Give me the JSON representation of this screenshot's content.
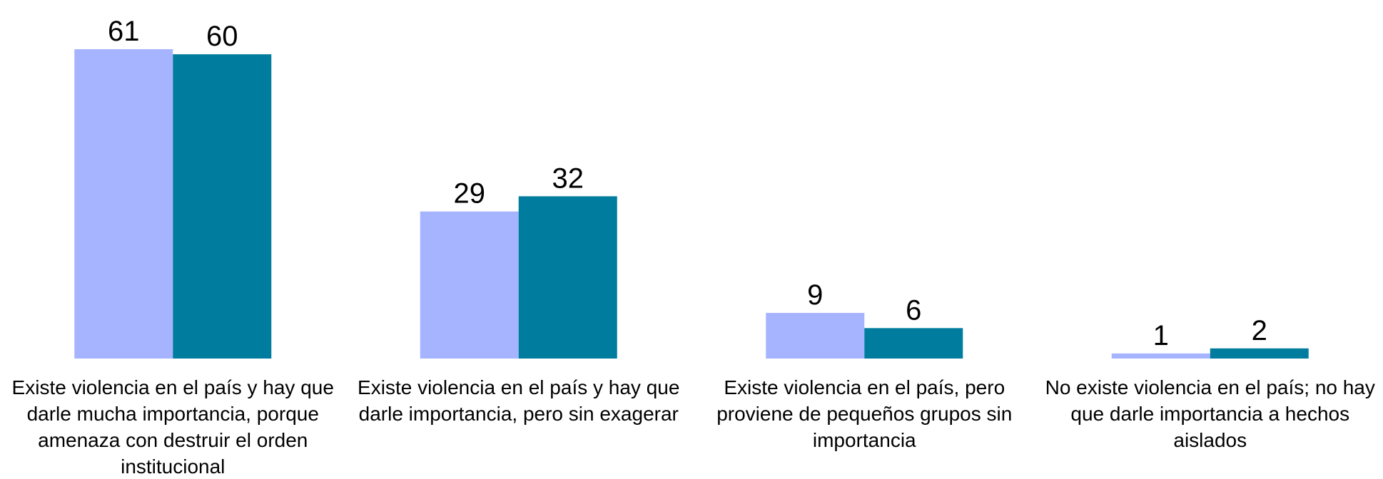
{
  "chart_data": {
    "type": "bar",
    "categories": [
      "Existe violencia en el país y hay que darle mucha importancia, porque amenaza con destruir el orden institucional",
      "Existe violencia en el país y hay que darle importancia, pero sin exagerar",
      "Existe violencia en el país, pero proviene de pequeños grupos sin importancia",
      "No existe violencia en el país; no hay que darle importancia a hechos aislados"
    ],
    "series": [
      {
        "color": "#a6b4ff",
        "values": [
          61,
          29,
          9,
          1
        ]
      },
      {
        "color": "#007d9e",
        "values": [
          60,
          32,
          6,
          2
        ]
      }
    ],
    "ylim": [
      0,
      70
    ]
  }
}
